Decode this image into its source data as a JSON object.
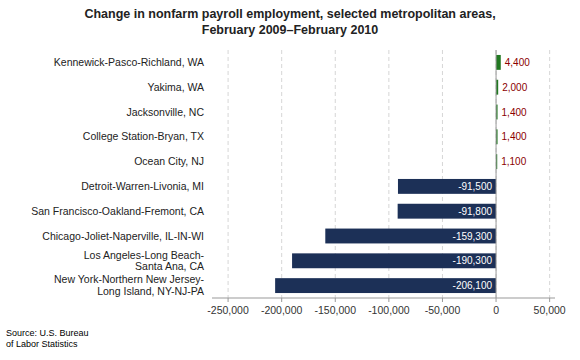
{
  "chart_data": {
    "type": "bar",
    "orientation": "horizontal",
    "title": "Change in nonfarm payroll employment, selected metropolitan areas,\nFebruary 2009–February 2010",
    "categories": [
      "Kennewick-Pasco-Richland, WA",
      "Yakima, WA",
      "Jacksonville, NC",
      "College Station-Bryan, TX",
      "Ocean City, NJ",
      "Detroit-Warren-Livonia, MI",
      "San Francisco-Oakland-Fremont, CA",
      "Chicago-Joliet-Naperville, IL-IN-WI",
      "Los Angeles-Long Beach-\nSanta Ana, CA",
      "New York-Northern New Jersey-\nLong Island, NY-NJ-PA"
    ],
    "values": [
      4400,
      2000,
      1400,
      1400,
      1100,
      -91500,
      -91800,
      -159300,
      -190300,
      -206100
    ],
    "value_labels": [
      "4,400",
      "2,000",
      "1,400",
      "1,400",
      "1,100",
      "-91,500",
      "-91,800",
      "-159,300",
      "-190,300",
      "-206,100"
    ],
    "colors": [
      "#217821",
      "#217821",
      "#217821",
      "#217821",
      "#217821",
      "#1c3057",
      "#1c3057",
      "#1c3057",
      "#1c3057",
      "#1c3057"
    ],
    "xlim": [
      -265000,
      55000
    ],
    "xticks": [
      {
        "value": -250000,
        "label": "-250,000"
      },
      {
        "value": -200000,
        "label": "-200,000"
      },
      {
        "value": -150000,
        "label": "-150,000"
      },
      {
        "value": -100000,
        "label": "-100,000"
      },
      {
        "value": -50000,
        "label": "-50,000"
      },
      0,
      {
        "value": 50000,
        "label": "50,000"
      }
    ],
    "grid": true,
    "annotations": [
      "Source: U.S. Bureau\nof Labor Statistics"
    ]
  }
}
